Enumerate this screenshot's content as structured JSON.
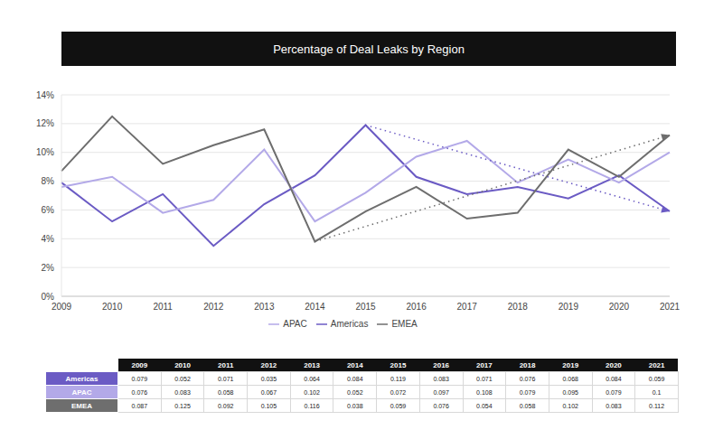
{
  "chart_data": {
    "type": "line",
    "title": "Percentage of Deal Leaks by Region",
    "categories": [
      "2009",
      "2010",
      "2011",
      "2012",
      "2013",
      "2014",
      "2015",
      "2016",
      "2017",
      "2018",
      "2019",
      "2020",
      "2021"
    ],
    "series": [
      {
        "name": "Americas",
        "color": "#6b5bc4",
        "values": [
          7.9,
          5.2,
          7.1,
          3.5,
          6.4,
          8.4,
          11.9,
          8.3,
          7.1,
          7.6,
          6.8,
          8.4,
          5.9
        ]
      },
      {
        "name": "APAC",
        "color": "#b3a9e8",
        "values": [
          7.6,
          8.3,
          5.8,
          6.7,
          10.2,
          5.2,
          7.2,
          9.7,
          10.8,
          7.9,
          9.5,
          7.9,
          10
        ]
      },
      {
        "name": "EMEA",
        "color": "#6e6e6e",
        "values": [
          8.7,
          12.5,
          9.2,
          10.5,
          11.6,
          3.8,
          5.9,
          7.6,
          5.4,
          5.8,
          10.2,
          8.3,
          11.2
        ]
      }
    ],
    "ylim": [
      0,
      14
    ],
    "yticks": [
      {
        "value": 0,
        "label": "0%"
      },
      {
        "value": 2,
        "label": "2%"
      },
      {
        "value": 4,
        "label": "4%"
      },
      {
        "value": 6,
        "label": "6%"
      },
      {
        "value": 8,
        "label": "8%"
      },
      {
        "value": 10,
        "label": "10%"
      },
      {
        "value": 12,
        "label": "12%"
      },
      {
        "value": 14,
        "label": "14%"
      }
    ],
    "grid": true,
    "legend": "bottom"
  },
  "table": {
    "header": [
      "2009",
      "2010",
      "2011",
      "2012",
      "2013",
      "2014",
      "2015",
      "2016",
      "2017",
      "2018",
      "2019",
      "2020",
      "2021"
    ],
    "rows": [
      [
        "Americas",
        "0.079",
        "0.052",
        "0.071",
        "0.035",
        "0.064",
        "0.084",
        "0.119",
        "0.083",
        "0.071",
        "0.076",
        "0.068",
        "0.084",
        "0.059"
      ],
      [
        "APAC",
        "0.076",
        "0.083",
        "0.058",
        "0.067",
        "0.102",
        "0.052",
        "0.072",
        "0.097",
        "0.108",
        "0.079",
        "0.095",
        "0.079",
        "0.1"
      ],
      [
        "EMEA",
        "0.087",
        "0.125",
        "0.092",
        "0.105",
        "0.116",
        "0.038",
        "0.059",
        "0.076",
        "0.054",
        "0.058",
        "0.102",
        "0.083",
        "0.112"
      ]
    ]
  }
}
